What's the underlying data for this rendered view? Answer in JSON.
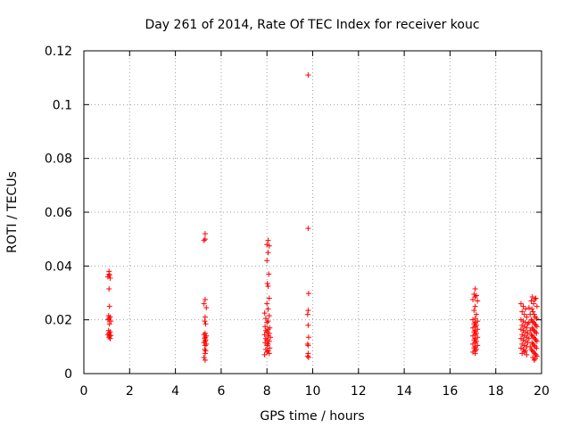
{
  "chart_data": {
    "type": "scatter",
    "title": "Day 261 of 2014, Rate Of TEC Index for receiver kouc",
    "xlabel": "GPS time / hours",
    "ylabel": "ROTI / TECUs",
    "xlim": [
      0,
      20
    ],
    "ylim": [
      0,
      0.12
    ],
    "xticks": [
      0,
      2,
      4,
      6,
      8,
      10,
      12,
      14,
      16,
      18,
      20
    ],
    "yticks": [
      0,
      0.02,
      0.04,
      0.06,
      0.08,
      0.1,
      0.12
    ],
    "xtick_labels": [
      "0",
      "2",
      "4",
      "6",
      "8",
      "10",
      "12",
      "14",
      "16",
      "18",
      "20"
    ],
    "ytick_labels": [
      "0",
      "0.02",
      "0.04",
      "0.06",
      "0.08",
      "0.1",
      "0.12"
    ],
    "grid": true,
    "marker": "+",
    "marker_color": "#ff0000",
    "series": [
      {
        "name": "ROTI",
        "points": [
          [
            1.1,
            0.038
          ],
          [
            1.1,
            0.037
          ],
          [
            1.12,
            0.0365
          ],
          [
            1.05,
            0.036
          ],
          [
            1.15,
            0.0355
          ],
          [
            1.1,
            0.0315
          ],
          [
            1.12,
            0.025
          ],
          [
            1.08,
            0.0215
          ],
          [
            1.15,
            0.021
          ],
          [
            1.1,
            0.0205
          ],
          [
            1.05,
            0.02
          ],
          [
            1.18,
            0.0195
          ],
          [
            1.12,
            0.0185
          ],
          [
            1.08,
            0.016
          ],
          [
            1.15,
            0.0155
          ],
          [
            1.1,
            0.015
          ],
          [
            1.05,
            0.0145
          ],
          [
            1.18,
            0.0142
          ],
          [
            1.12,
            0.014
          ],
          [
            1.1,
            0.0135
          ],
          [
            1.15,
            0.013
          ],
          [
            5.3,
            0.052
          ],
          [
            5.3,
            0.05
          ],
          [
            5.25,
            0.0495
          ],
          [
            5.3,
            0.0275
          ],
          [
            5.25,
            0.026
          ],
          [
            5.35,
            0.0245
          ],
          [
            5.3,
            0.021
          ],
          [
            5.28,
            0.0195
          ],
          [
            5.32,
            0.0185
          ],
          [
            5.3,
            0.015
          ],
          [
            5.25,
            0.0145
          ],
          [
            5.35,
            0.014
          ],
          [
            5.3,
            0.0135
          ],
          [
            5.28,
            0.013
          ],
          [
            5.32,
            0.0125
          ],
          [
            5.3,
            0.012
          ],
          [
            5.25,
            0.0115
          ],
          [
            5.35,
            0.011
          ],
          [
            5.3,
            0.0105
          ],
          [
            5.28,
            0.009
          ],
          [
            5.32,
            0.0085
          ],
          [
            5.3,
            0.0075
          ],
          [
            5.25,
            0.006
          ],
          [
            5.3,
            0.005
          ],
          [
            8.05,
            0.0495
          ],
          [
            8.0,
            0.048
          ],
          [
            8.1,
            0.0475
          ],
          [
            8.05,
            0.045
          ],
          [
            8.0,
            0.042
          ],
          [
            8.08,
            0.037
          ],
          [
            8.02,
            0.0335
          ],
          [
            8.05,
            0.0325
          ],
          [
            8.1,
            0.028
          ],
          [
            8.0,
            0.026
          ],
          [
            8.05,
            0.024
          ],
          [
            7.9,
            0.0225
          ],
          [
            8.1,
            0.0215
          ],
          [
            7.95,
            0.0205
          ],
          [
            8.05,
            0.0195
          ],
          [
            8.0,
            0.019
          ],
          [
            7.92,
            0.0175
          ],
          [
            8.12,
            0.017
          ],
          [
            8.05,
            0.0165
          ],
          [
            7.95,
            0.016
          ],
          [
            8.0,
            0.0155
          ],
          [
            8.1,
            0.015
          ],
          [
            7.9,
            0.0145
          ],
          [
            8.05,
            0.014
          ],
          [
            8.15,
            0.0135
          ],
          [
            7.95,
            0.013
          ],
          [
            8.0,
            0.0125
          ],
          [
            8.1,
            0.012
          ],
          [
            7.92,
            0.0115
          ],
          [
            8.05,
            0.011
          ],
          [
            8.0,
            0.0105
          ],
          [
            8.12,
            0.0095
          ],
          [
            7.95,
            0.009
          ],
          [
            8.05,
            0.0085
          ],
          [
            8.0,
            0.008
          ],
          [
            8.1,
            0.0075
          ],
          [
            7.9,
            0.007
          ],
          [
            9.8,
            0.111
          ],
          [
            9.8,
            0.054
          ],
          [
            9.82,
            0.0298
          ],
          [
            9.8,
            0.0235
          ],
          [
            9.78,
            0.022
          ],
          [
            9.8,
            0.018
          ],
          [
            9.82,
            0.0135
          ],
          [
            9.78,
            0.011
          ],
          [
            9.8,
            0.0105
          ],
          [
            9.8,
            0.0075
          ],
          [
            9.78,
            0.0065
          ],
          [
            9.82,
            0.006
          ],
          [
            17.1,
            0.0315
          ],
          [
            17.05,
            0.0295
          ],
          [
            17.15,
            0.029
          ],
          [
            17.1,
            0.0285
          ],
          [
            17.0,
            0.0275
          ],
          [
            17.2,
            0.027
          ],
          [
            17.1,
            0.025
          ],
          [
            17.05,
            0.0235
          ],
          [
            17.15,
            0.022
          ],
          [
            17.1,
            0.0205
          ],
          [
            17.0,
            0.02
          ],
          [
            17.2,
            0.0195
          ],
          [
            17.1,
            0.019
          ],
          [
            17.05,
            0.0185
          ],
          [
            17.15,
            0.018
          ],
          [
            17.1,
            0.0175
          ],
          [
            17.0,
            0.017
          ],
          [
            17.2,
            0.0165
          ],
          [
            17.1,
            0.016
          ],
          [
            17.05,
            0.0155
          ],
          [
            17.15,
            0.015
          ],
          [
            17.1,
            0.0145
          ],
          [
            17.0,
            0.014
          ],
          [
            17.2,
            0.0135
          ],
          [
            17.1,
            0.013
          ],
          [
            17.05,
            0.0125
          ],
          [
            17.15,
            0.012
          ],
          [
            17.1,
            0.0115
          ],
          [
            17.0,
            0.011
          ],
          [
            17.2,
            0.0105
          ],
          [
            17.1,
            0.01
          ],
          [
            17.05,
            0.0095
          ],
          [
            17.15,
            0.009
          ],
          [
            17.1,
            0.0085
          ],
          [
            17.0,
            0.008
          ],
          [
            17.1,
            0.0075
          ],
          [
            19.1,
            0.026
          ],
          [
            19.2,
            0.025
          ],
          [
            19.3,
            0.024
          ],
          [
            19.15,
            0.023
          ],
          [
            19.25,
            0.022
          ],
          [
            19.35,
            0.021
          ],
          [
            19.1,
            0.02
          ],
          [
            19.2,
            0.0195
          ],
          [
            19.3,
            0.019
          ],
          [
            19.4,
            0.0185
          ],
          [
            19.15,
            0.018
          ],
          [
            19.25,
            0.0175
          ],
          [
            19.35,
            0.017
          ],
          [
            19.1,
            0.0165
          ],
          [
            19.2,
            0.016
          ],
          [
            19.3,
            0.0155
          ],
          [
            19.4,
            0.015
          ],
          [
            19.15,
            0.0145
          ],
          [
            19.25,
            0.014
          ],
          [
            19.35,
            0.0135
          ],
          [
            19.1,
            0.013
          ],
          [
            19.2,
            0.0125
          ],
          [
            19.3,
            0.012
          ],
          [
            19.4,
            0.0115
          ],
          [
            19.15,
            0.011
          ],
          [
            19.25,
            0.0105
          ],
          [
            19.35,
            0.01
          ],
          [
            19.1,
            0.0095
          ],
          [
            19.2,
            0.009
          ],
          [
            19.3,
            0.0085
          ],
          [
            19.25,
            0.008
          ],
          [
            19.15,
            0.0075
          ],
          [
            19.35,
            0.007
          ],
          [
            19.45,
            0.0245
          ],
          [
            19.5,
            0.022
          ],
          [
            19.45,
            0.019
          ],
          [
            19.5,
            0.016
          ],
          [
            19.45,
            0.013
          ],
          [
            19.5,
            0.01
          ],
          [
            19.55,
            0.027
          ],
          [
            19.6,
            0.0285
          ],
          [
            19.65,
            0.026
          ],
          [
            19.7,
            0.0275
          ],
          [
            19.75,
            0.028
          ],
          [
            19.8,
            0.025
          ],
          [
            19.58,
            0.024
          ],
          [
            19.62,
            0.023
          ],
          [
            19.68,
            0.022
          ],
          [
            19.72,
            0.021
          ],
          [
            19.78,
            0.0205
          ],
          [
            19.55,
            0.02
          ],
          [
            19.6,
            0.0195
          ],
          [
            19.65,
            0.019
          ],
          [
            19.7,
            0.0185
          ],
          [
            19.75,
            0.018
          ],
          [
            19.8,
            0.0175
          ],
          [
            19.58,
            0.017
          ],
          [
            19.62,
            0.0165
          ],
          [
            19.68,
            0.016
          ],
          [
            19.72,
            0.0155
          ],
          [
            19.78,
            0.015
          ],
          [
            19.55,
            0.0145
          ],
          [
            19.6,
            0.014
          ],
          [
            19.65,
            0.0135
          ],
          [
            19.7,
            0.013
          ],
          [
            19.75,
            0.0125
          ],
          [
            19.8,
            0.012
          ],
          [
            19.58,
            0.0115
          ],
          [
            19.62,
            0.011
          ],
          [
            19.68,
            0.0105
          ],
          [
            19.72,
            0.01
          ],
          [
            19.78,
            0.0095
          ],
          [
            19.55,
            0.009
          ],
          [
            19.6,
            0.0085
          ],
          [
            19.65,
            0.008
          ],
          [
            19.7,
            0.0075
          ],
          [
            19.75,
            0.007
          ],
          [
            19.8,
            0.0065
          ],
          [
            19.62,
            0.006
          ],
          [
            19.72,
            0.0055
          ],
          [
            19.68,
            0.005
          ]
        ]
      }
    ]
  }
}
